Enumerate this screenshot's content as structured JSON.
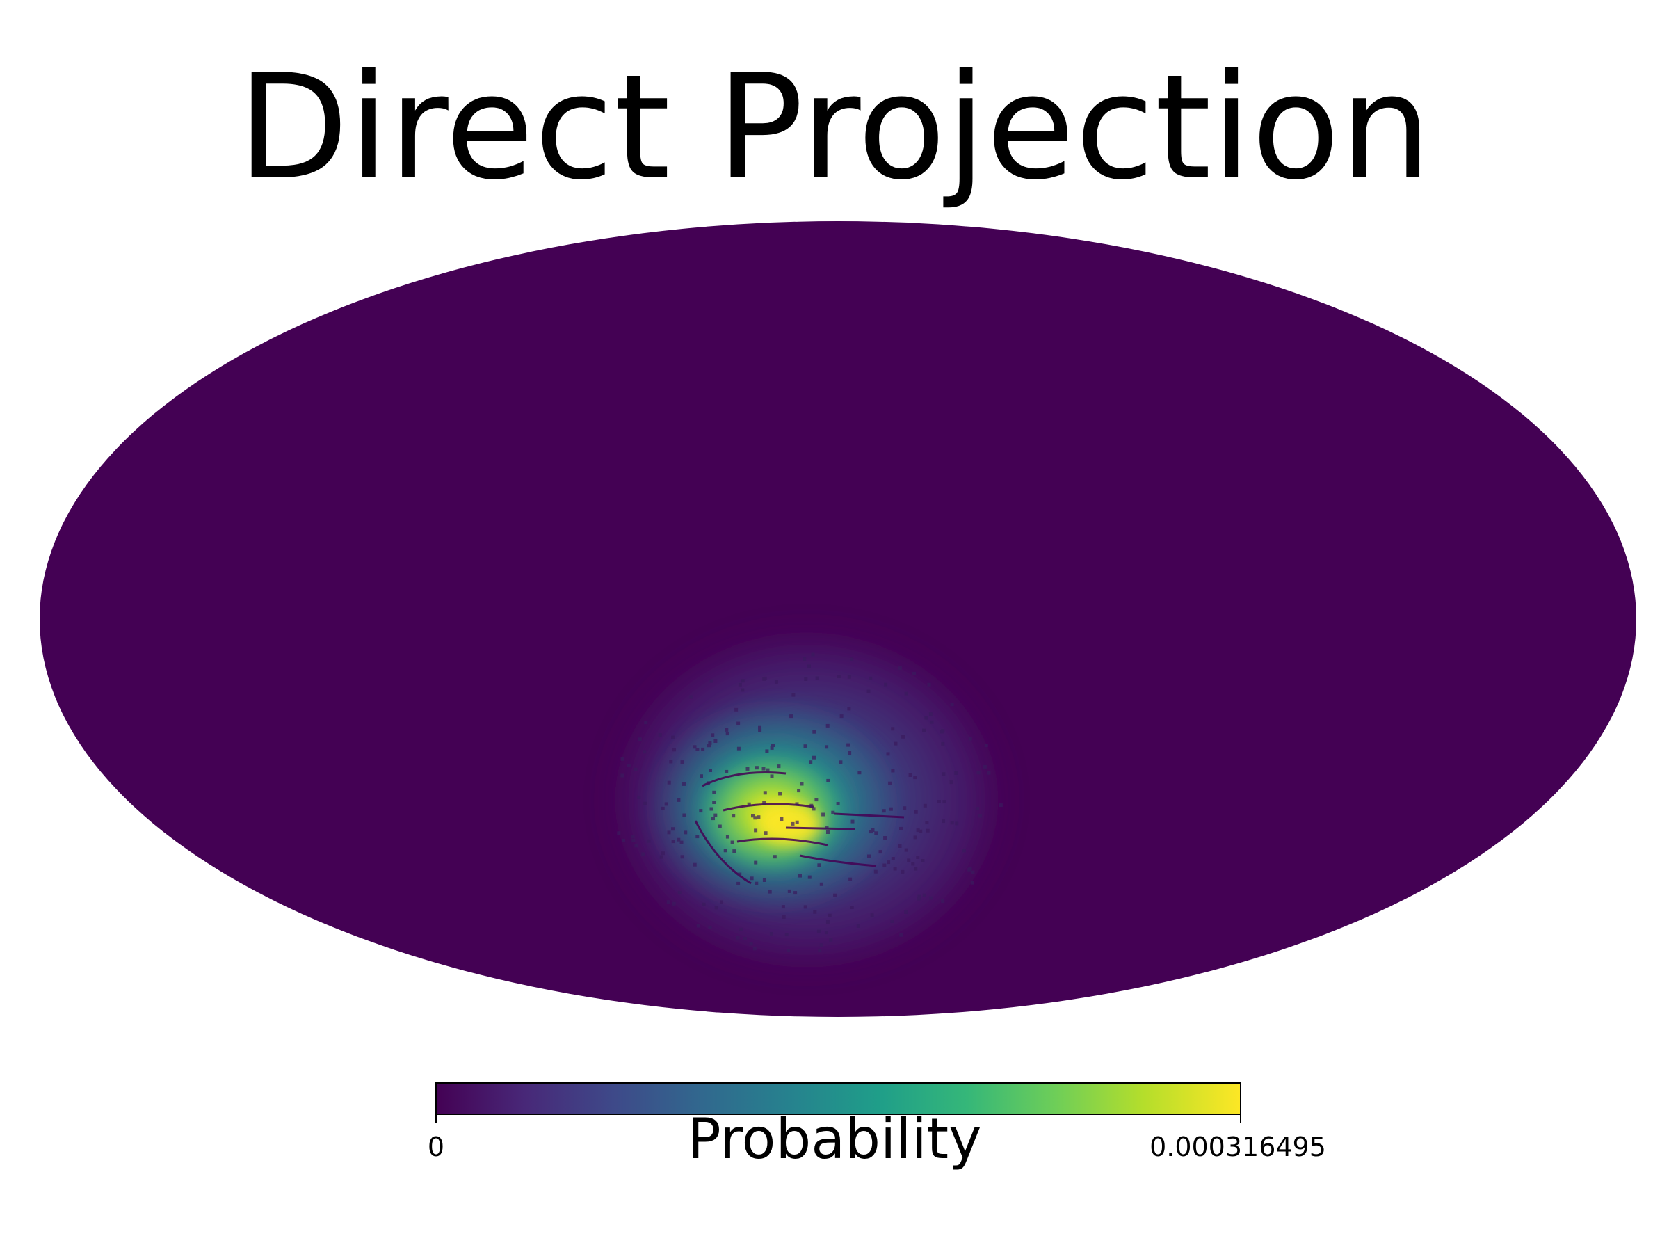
{
  "chart_data": {
    "type": "heatmap",
    "projection": "mollweide",
    "title": "Direct Projection",
    "colormap": "viridis",
    "colorbar": {
      "label": "Probability",
      "min_label": "0",
      "max_label": "0.000316495",
      "min": 0,
      "max": 0.000316495,
      "placement": "bottom"
    },
    "colors": {
      "background_value": "#440154",
      "viridis_stops": [
        "#440154",
        "#482878",
        "#3e4989",
        "#31688e",
        "#26828e",
        "#1f9e89",
        "#35b779",
        "#6ece58",
        "#b5de2b",
        "#fde725"
      ]
    },
    "grid": false,
    "legend": "none",
    "hotspot": {
      "location": "lower-center, slightly below equator",
      "peak_value": 0.000316495
    }
  }
}
